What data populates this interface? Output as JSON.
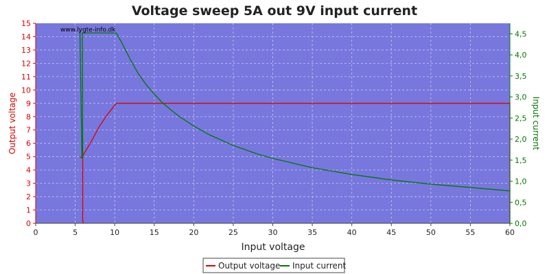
{
  "chart_data": {
    "type": "line",
    "title": "Voltage sweep 5A out 9V input current",
    "xlabel": "Input voltage",
    "ylabel_left": "Output voltage",
    "ylabel_right": "Input current",
    "watermark": "www.lygte-info.dk",
    "xlim": [
      0,
      60
    ],
    "ylim_left": [
      0,
      15
    ],
    "ylim_right": [
      0,
      4.75
    ],
    "x_ticks": [
      "0",
      "5",
      "10",
      "15",
      "20",
      "25",
      "30",
      "35",
      "40",
      "45",
      "50",
      "55",
      "60"
    ],
    "y_left_ticks": [
      "0",
      "1",
      "2",
      "3",
      "4",
      "5",
      "6",
      "7",
      "8",
      "9",
      "10",
      "11",
      "12",
      "13",
      "14",
      "15"
    ],
    "y_right_ticks": [
      "0,0",
      "0,5",
      "1,0",
      "1,5",
      "2,0",
      "2,5",
      "3,0",
      "3,5",
      "4,0",
      "4,5"
    ],
    "grid": true,
    "legend_position": "bottom-center",
    "colors": {
      "plot_bg": "#7777dd",
      "output_voltage": "#dd0000",
      "input_current": "#007700",
      "left_axis": "#dd0000",
      "right_axis": "#007700"
    },
    "series": [
      {
        "name": "Output voltage",
        "axis": "left",
        "points": [
          [
            6.0,
            0.0
          ],
          [
            6.0,
            0.1
          ],
          [
            5.95,
            0.2
          ],
          [
            5.95,
            4.9
          ],
          [
            5.7,
            4.95
          ],
          [
            5.9,
            5.0
          ],
          [
            7.0,
            6.1
          ],
          [
            8.0,
            7.2
          ],
          [
            9.0,
            8.1
          ],
          [
            10.2,
            9.0
          ],
          [
            15,
            9.0
          ],
          [
            20,
            9.0
          ],
          [
            30,
            9.0
          ],
          [
            40,
            9.0
          ],
          [
            50,
            9.0
          ],
          [
            59.9,
            9.0
          ],
          [
            60,
            9.0
          ],
          [
            60,
            0.0
          ]
        ]
      },
      {
        "name": "Input current",
        "axis": "right",
        "points": [
          [
            5.5,
            4.55
          ],
          [
            5.6,
            4.55
          ],
          [
            5.85,
            1.55
          ],
          [
            5.95,
            1.55
          ],
          [
            5.9,
            4.52
          ],
          [
            6.5,
            4.52
          ],
          [
            10.2,
            4.52
          ],
          [
            11,
            4.25
          ],
          [
            12,
            3.88
          ],
          [
            13,
            3.55
          ],
          [
            14,
            3.29
          ],
          [
            15,
            3.07
          ],
          [
            16,
            2.87
          ],
          [
            17,
            2.71
          ],
          [
            18,
            2.56
          ],
          [
            20,
            2.31
          ],
          [
            22,
            2.1
          ],
          [
            25,
            1.85
          ],
          [
            28,
            1.65
          ],
          [
            30,
            1.54
          ],
          [
            35,
            1.32
          ],
          [
            40,
            1.16
          ],
          [
            45,
            1.03
          ],
          [
            50,
            0.93
          ],
          [
            55,
            0.85
          ],
          [
            60,
            0.77
          ]
        ]
      }
    ],
    "legend": [
      {
        "label": "Output voltage",
        "color": "#dd0000"
      },
      {
        "label": "Input current",
        "color": "#007700"
      }
    ]
  }
}
